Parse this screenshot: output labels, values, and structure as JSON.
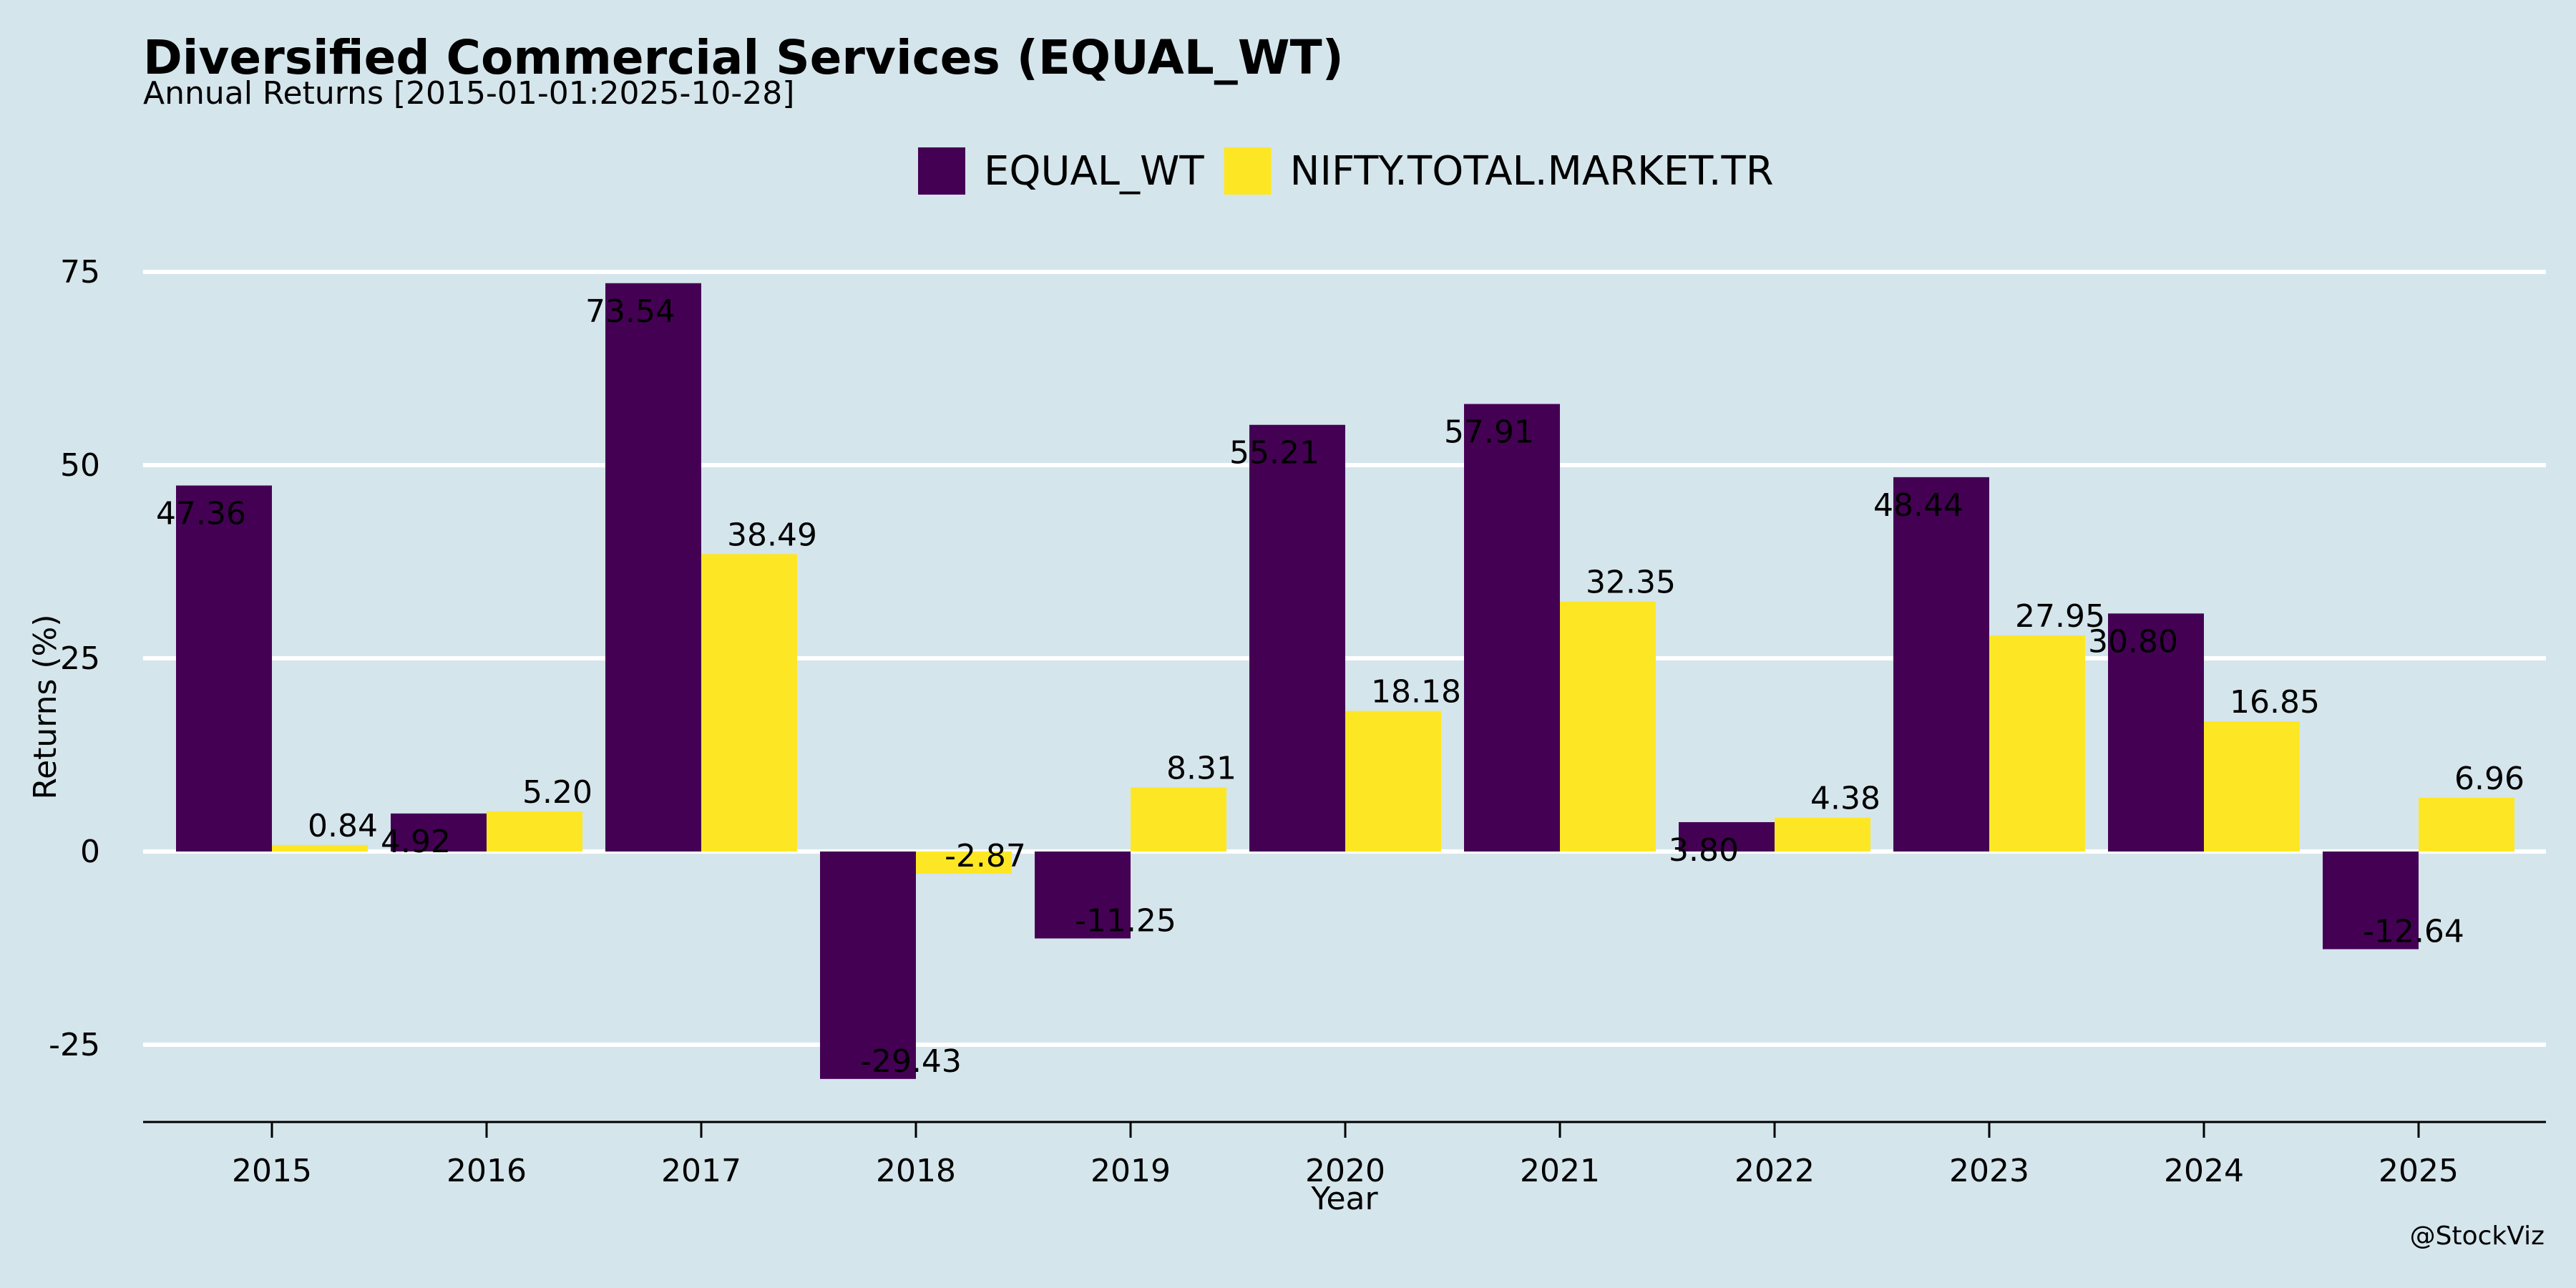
{
  "colors": {
    "background": "#d5e5ec",
    "grid": "#ffffff",
    "axis": "#000000"
  },
  "watermark": "@StockViz",
  "chart_data": {
    "type": "bar",
    "title": "Diversified Commercial Services (EQUAL_WT)",
    "subtitle": "Annual Returns [2015-01-01:2025-10-28]",
    "xlabel": "Year",
    "ylabel": "Returns (%)",
    "ylim": [
      -35,
      75
    ],
    "yticks": [
      -25,
      0,
      25,
      50,
      75
    ],
    "grid": true,
    "legend_position": "top-center",
    "categories": [
      "2015",
      "2016",
      "2017",
      "2018",
      "2019",
      "2020",
      "2021",
      "2022",
      "2023",
      "2024",
      "2025"
    ],
    "series": [
      {
        "name": "EQUAL_WT",
        "color": "#440154",
        "values": [
          47.36,
          4.92,
          73.54,
          -29.43,
          -11.25,
          55.21,
          57.91,
          3.8,
          48.44,
          30.8,
          -12.64
        ],
        "labels": [
          "47.36",
          "4.92",
          "73.54",
          "-29.43",
          "-11.25",
          "55.21",
          "57.91",
          "3.80",
          "48.44",
          "30.80",
          "-12.64"
        ]
      },
      {
        "name": "NIFTY.TOTAL.MARKET.TR",
        "color": "#fde725",
        "values": [
          0.84,
          5.2,
          38.49,
          -2.87,
          8.31,
          18.18,
          32.35,
          4.38,
          27.95,
          16.85,
          6.96
        ],
        "labels": [
          "0.84",
          "5.20",
          "38.49",
          "-2.87",
          "8.31",
          "18.18",
          "32.35",
          "4.38",
          "27.95",
          "16.85",
          "6.96"
        ]
      }
    ]
  }
}
